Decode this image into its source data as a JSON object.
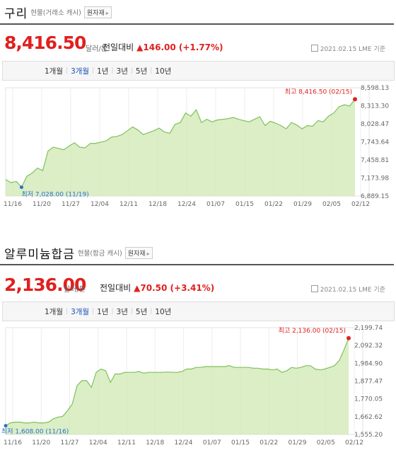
{
  "ui": {
    "range_tabs": [
      "1개월",
      "3개월",
      "1년",
      "3년",
      "5년",
      "10년"
    ],
    "active_tab": "3개월",
    "change_label": "전일대비",
    "unit": "달러/톤"
  },
  "colors": {
    "up": "#e0201f",
    "accent_tab": "#1a4fb8",
    "area_fill": "#cfe8b3",
    "area_line": "#7fc15a",
    "low_dot": "#2d6fcf"
  },
  "copper": {
    "name": "구리",
    "subtitle": "현물(거래소 캐시)",
    "origin_button": "원자재",
    "price": "8,416.50",
    "change": "▲146.00 (+1.77%)",
    "date": "2021.02.15 LME 기준",
    "high_label": "최고 8,416.50 (02/15)",
    "low_label": "최저 7,028.00 (11/19)",
    "yticks": [
      "8,598.13",
      "8,313.30",
      "8,028.47",
      "7,743.64",
      "7,458.81",
      "7,173.98",
      "6,889.15"
    ],
    "xticks": [
      "11/16",
      "11/20",
      "11/27",
      "12/04",
      "12/11",
      "12/18",
      "12/24",
      "01/07",
      "01/15",
      "01/22",
      "01/29",
      "02/05",
      "02/12"
    ]
  },
  "aluminium": {
    "name": "알루미늄합금",
    "subtitle": "현물(합금 캐시)",
    "origin_button": "원자재",
    "price": "2,136.00",
    "change": "▲70.50 (+3.41%)",
    "date": "2021.02.15 LME 기준",
    "high_label": "최고 2,136.00 (02/15)",
    "low_label": "최저 1,608.00 (11/16)",
    "yticks": [
      "2,199.74",
      "2,092.32",
      "1,984.90",
      "1,877.47",
      "1,770.05",
      "1,662.62",
      "1,555.20"
    ],
    "xticks": [
      "11/16",
      "11/20",
      "11/27",
      "12/04",
      "12/11",
      "12/18",
      "12/24",
      "01/07",
      "01/15",
      "01/22",
      "01/29",
      "02/05",
      "02/12"
    ]
  },
  "chart_data": [
    {
      "type": "area",
      "ylim": [
        6889.15,
        8598.13
      ],
      "series": [
        {
          "values": [
            7150,
            7100,
            7120,
            7028,
            7200,
            7250,
            7330,
            7290,
            7600,
            7660,
            7640,
            7620,
            7680,
            7730,
            7660,
            7650,
            7720,
            7720,
            7740,
            7760,
            7820,
            7830,
            7860,
            7920,
            7980,
            7930,
            7860,
            7890,
            7920,
            7960,
            7900,
            7880,
            8020,
            8050,
            8200,
            8150,
            8250,
            8050,
            8100,
            8060,
            8090,
            8100,
            8110,
            8130,
            8100,
            8080,
            8060,
            8100,
            8140,
            8000,
            8070,
            8040,
            8000,
            7950,
            8050,
            8010,
            7950,
            8000,
            7990,
            8080,
            8060,
            8150,
            8200,
            8300,
            8330,
            8310,
            8416.5
          ]
        }
      ]
    },
    {
      "type": "area",
      "ylim": [
        1555.2,
        2199.74
      ],
      "series": [
        {
          "values": [
            1608,
            1625,
            1630,
            1630,
            1625,
            1625,
            1630,
            1625,
            1625,
            1630,
            1650,
            1660,
            1665,
            1700,
            1740,
            1850,
            1880,
            1880,
            1840,
            1930,
            1950,
            1940,
            1870,
            1920,
            1920,
            1930,
            1930,
            1930,
            1935,
            1925,
            1930,
            1930,
            1930,
            1930,
            1932,
            1930,
            1930,
            1935,
            1950,
            1950,
            1960,
            1960,
            1965,
            1965,
            1965,
            1965,
            1965,
            1970,
            1960,
            1960,
            1960,
            1960,
            1955,
            1955,
            1950,
            1950,
            1945,
            1950,
            1930,
            1940,
            1960,
            1955,
            1960,
            1970,
            1970,
            1950,
            1945,
            1950,
            1960,
            1970,
            2000,
            2065,
            2136
          ]
        }
      ]
    }
  ]
}
